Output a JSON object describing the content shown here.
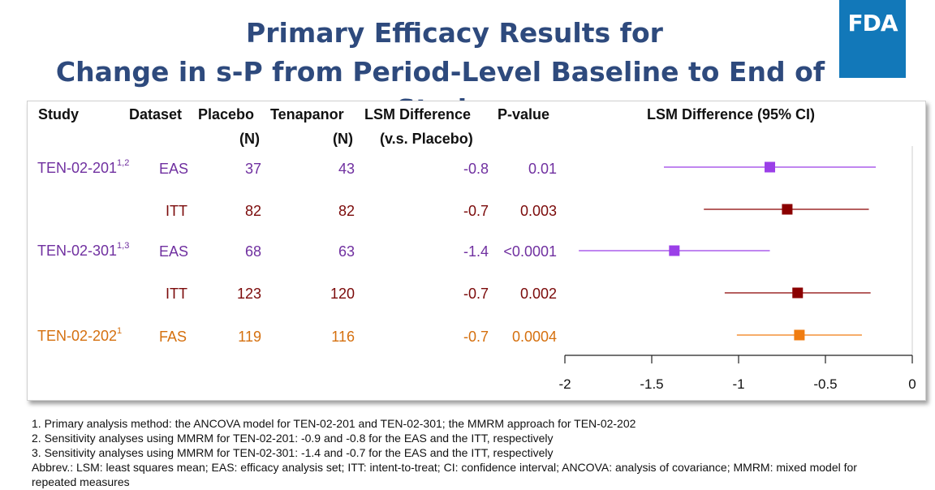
{
  "slide": {
    "title_line1": "Primary Efficacy Results for",
    "title_line2": "Change in s-P from Period-Level Baseline to End of Study",
    "logo_text": "FDA"
  },
  "table": {
    "headers": {
      "study": "Study",
      "dataset": "Dataset",
      "placebo": "Placebo",
      "placebo_sub": "(N)",
      "tenapanor": "Tenapanor",
      "tenapanor_sub": "(N)",
      "lsm": "LSM Difference",
      "lsm_sub": "(v.s. Placebo)",
      "pvalue": "P-value",
      "plot": "LSM Difference (95% CI)"
    },
    "rows": [
      {
        "study": "TEN-02-201",
        "study_sup": "1,2",
        "dataset": "EAS",
        "placebo_n": "37",
        "tenapanor_n": "43",
        "lsm": "-0.8",
        "pvalue": "0.01",
        "color": "#7030a0",
        "marker": "#9b3fe8"
      },
      {
        "study": "",
        "study_sup": "",
        "dataset": "ITT",
        "placebo_n": "82",
        "tenapanor_n": "82",
        "lsm": "-0.7",
        "pvalue": "0.003",
        "color": "#7b0a0a",
        "marker": "#8b0000"
      },
      {
        "study": "TEN-02-301",
        "study_sup": "1,3",
        "dataset": "EAS",
        "placebo_n": "68",
        "tenapanor_n": "63",
        "lsm": "-1.4",
        "pvalue": "<0.0001",
        "color": "#7030a0",
        "marker": "#9b3fe8"
      },
      {
        "study": "",
        "study_sup": "",
        "dataset": "ITT",
        "placebo_n": "123",
        "tenapanor_n": "120",
        "lsm": "-0.7",
        "pvalue": "0.002",
        "color": "#7b0a0a",
        "marker": "#8b0000"
      },
      {
        "study": "TEN-02-202",
        "study_sup": "1",
        "dataset": "FAS",
        "placebo_n": "119",
        "tenapanor_n": "116",
        "lsm": "-0.7",
        "pvalue": "0.0004",
        "color": "#d5700f",
        "marker": "#f07c10"
      }
    ]
  },
  "chart_data": {
    "type": "forest",
    "title": "LSM Difference (95% CI)",
    "xlim": [
      -2,
      0
    ],
    "ticks": [
      -2,
      -1.5,
      -1,
      -0.5,
      0
    ],
    "tick_labels": [
      "-2",
      "-1.5",
      "-1",
      "-0.5",
      "0"
    ],
    "reference_line": 0,
    "points": [
      {
        "label": "TEN-02-201 EAS",
        "estimate": -0.82,
        "lower": -1.43,
        "upper": -0.21,
        "color": "#9b3fe8"
      },
      {
        "label": "TEN-02-201 ITT",
        "estimate": -0.72,
        "lower": -1.2,
        "upper": -0.25,
        "color": "#8b0000"
      },
      {
        "label": "TEN-02-301 EAS",
        "estimate": -1.37,
        "lower": -1.92,
        "upper": -0.82,
        "color": "#9b3fe8"
      },
      {
        "label": "TEN-02-301 ITT",
        "estimate": -0.66,
        "lower": -1.08,
        "upper": -0.24,
        "color": "#8b0000"
      },
      {
        "label": "TEN-02-202 FAS",
        "estimate": -0.65,
        "lower": -1.01,
        "upper": -0.29,
        "color": "#f07c10"
      }
    ]
  },
  "footnotes": [
    "1. Primary analysis method: the ANCOVA model for TEN-02-201 and TEN-02-301; the MMRM approach for TEN-02-202",
    "2. Sensitivity analyses using MMRM for TEN-02-201: -0.9 and -0.8 for the EAS and the ITT, respectively",
    "3. Sensitivity analyses using MMRM for TEN-02-301: -1.4 and -0.7 for the EAS and the ITT, respectively",
    "Abbrev.: LSM: least squares mean; EAS: efficacy analysis set; ITT: intent-to-treat; CI: confidence interval; ANCOVA: analysis of covariance; MMRM: mixed model for repeated measures"
  ]
}
